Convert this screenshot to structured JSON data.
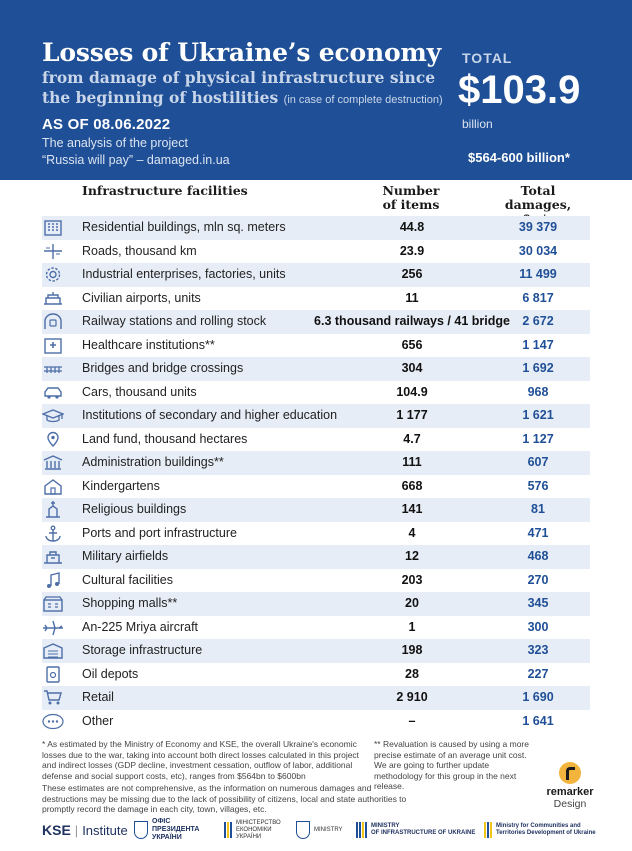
{
  "header": {
    "title": "Losses of Ukraine’s economy",
    "subtitle_line1": "from damage of physical infrastructure since",
    "subtitle_line2": "the beginning of hostilities",
    "subtitle_note": "(in case of complete destruction)",
    "as_of": "AS OF 08.06.2022",
    "analysis_line1": "The analysis of the project",
    "analysis_line2": "“Russia will pay” – damaged.in.ua",
    "total_label": "TOTAL",
    "total_value": "$103.9",
    "total_unit": "billion",
    "total_range": "$564-600 billion*",
    "colors": {
      "header_bg": "#1f4f96",
      "stripe": "#e7edf6",
      "damage_text": "#1f4f96"
    }
  },
  "table": {
    "col_name": "Infrastructure facilities",
    "col_count": "Number of items",
    "col_damages": "Total damages,",
    "col_damages_unit": "$ mln",
    "rows": [
      {
        "icon": "residential-building-icon",
        "name": "Residential buildings, mln sq. meters",
        "count": "44.8",
        "damages": "39 379"
      },
      {
        "icon": "road-icon",
        "name": "Roads, thousand km",
        "count": "23.9",
        "damages": "30 034"
      },
      {
        "icon": "gear-icon",
        "name": "Industrial enterprises, factories, units",
        "count": "256",
        "damages": "11 499"
      },
      {
        "icon": "airport-icon",
        "name": "Civilian airports, units",
        "count": "11",
        "damages": "6 817"
      },
      {
        "icon": "railway-tunnel-icon",
        "name": "Railway stations and rolling stock",
        "count": "6.3 thousand railways / 41 bridge",
        "damages": "2 672"
      },
      {
        "icon": "hospital-icon",
        "name": "Healthcare institutions**",
        "count": "656",
        "damages": "1 147"
      },
      {
        "icon": "bridge-icon",
        "name": "Bridges and bridge crossings",
        "count": "304",
        "damages": "1 692"
      },
      {
        "icon": "car-icon",
        "name": "Cars, thousand units",
        "count": "104.9",
        "damages": "968"
      },
      {
        "icon": "graduation-cap-icon",
        "name": "Institutions of secondary and higher education",
        "count": "1 177",
        "damages": "1 621"
      },
      {
        "icon": "location-pin-icon",
        "name": "Land fund, thousand hectares",
        "count": "4.7",
        "damages": "1 127"
      },
      {
        "icon": "government-building-icon",
        "name": "Administration buildings**",
        "count": "111",
        "damages": "607"
      },
      {
        "icon": "kindergarten-icon",
        "name": "Kindergartens",
        "count": "668",
        "damages": "576"
      },
      {
        "icon": "church-icon",
        "name": "Religious buildings",
        "count": "141",
        "damages": "81"
      },
      {
        "icon": "anchor-icon",
        "name": "Ports and port infrastructure",
        "count": "4",
        "damages": "471"
      },
      {
        "icon": "military-airfield-icon",
        "name": "Military airfields",
        "count": "12",
        "damages": "468"
      },
      {
        "icon": "music-note-icon",
        "name": "Cultural facilities",
        "count": "203",
        "damages": "270"
      },
      {
        "icon": "shopping-mall-icon",
        "name": "Shopping malls**",
        "count": "20",
        "damages": "345"
      },
      {
        "icon": "airplane-icon",
        "name": "An-225 Mriya aircraft",
        "count": "1",
        "damages": "300"
      },
      {
        "icon": "warehouse-icon",
        "name": "Storage infrastructure",
        "count": "198",
        "damages": "323"
      },
      {
        "icon": "oil-tank-icon",
        "name": "Oil depots",
        "count": "28",
        "damages": "227"
      },
      {
        "icon": "shopping-cart-icon",
        "name": "Retail",
        "count": "2 910",
        "damages": "1 690"
      },
      {
        "icon": "more-icon",
        "name": "Other",
        "count": "–",
        "damages": "1 641"
      }
    ]
  },
  "footnotes": {
    "note1": "* As estimated by the Ministry of Economy and KSE, the overall Ukraine's economic losses due to the war, taking into account both direct losses calculated in this project and indirect losses (GDP decline, investment cessation, outflow of labor, additional defense and social support costs, etc), ranges from $564bn to $600bn",
    "note2": "** Revaluation is caused by using a more precise estimate of an average unit cost. We are going to further update methodology for this group in the next release.",
    "note3": "These estimates are not comprehensive, as the information on numerous damages and destructions may be missing due to the lack of possibility of citizens, local and state authorities to promptly record the damage in each city, town, villages, etc."
  },
  "credits": {
    "remarker_name": "remarker",
    "remarker_sub": "Design"
  },
  "logos": {
    "kse_main": "KSE",
    "kse_sub": "Institute",
    "ofis_line1": "ОФІС",
    "ofis_line2": "ПРЕЗИДЕНТА",
    "ofis_line3": "УКРАЇНИ",
    "mine_line1": "МІНІСТЕРСТВО",
    "mine_line2": "ЕКОНОМІКИ",
    "mine_line3": "УКРАЇНИ",
    "ministry_line1": "MINISTRY",
    "mininfra_line1": "MINISTRY",
    "mininfra_line2": "OF INFRASTRUCTURE OF UKRAINE",
    "mincomm_line1": "Ministry for Communities and",
    "mincomm_line2": "Territories Development of Ukraine"
  }
}
